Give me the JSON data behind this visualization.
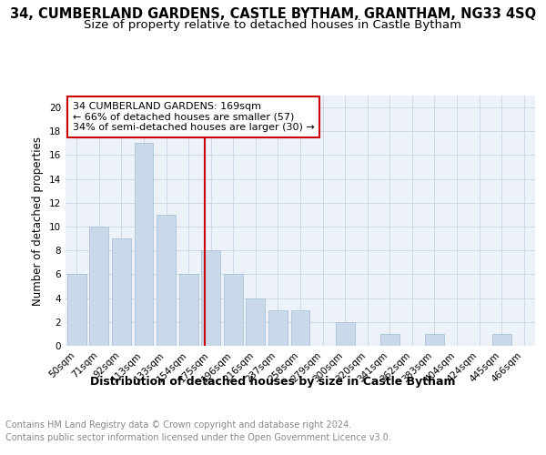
{
  "title1": "34, CUMBERLAND GARDENS, CASTLE BYTHAM, GRANTHAM, NG33 4SQ",
  "title2": "Size of property relative to detached houses in Castle Bytham",
  "xlabel": "Distribution of detached houses by size in Castle Bytham",
  "ylabel": "Number of detached properties",
  "categories": [
    "50sqm",
    "71sqm",
    "92sqm",
    "113sqm",
    "133sqm",
    "154sqm",
    "175sqm",
    "196sqm",
    "216sqm",
    "237sqm",
    "258sqm",
    "279sqm",
    "300sqm",
    "320sqm",
    "341sqm",
    "362sqm",
    "383sqm",
    "404sqm",
    "424sqm",
    "445sqm",
    "466sqm"
  ],
  "values": [
    6,
    10,
    9,
    17,
    11,
    6,
    8,
    6,
    4,
    3,
    3,
    0,
    2,
    0,
    1,
    0,
    1,
    0,
    0,
    1,
    0
  ],
  "bar_color": "#c9d9ea",
  "bar_edgecolor": "#a8c4d8",
  "vline_color": "#cc0000",
  "annotation_lines": [
    "34 CUMBERLAND GARDENS: 169sqm",
    "← 66% of detached houses are smaller (57)",
    "34% of semi-detached houses are larger (30) →"
  ],
  "ylim": [
    0,
    21
  ],
  "yticks": [
    0,
    2,
    4,
    6,
    8,
    10,
    12,
    14,
    16,
    18,
    20
  ],
  "grid_color": "#cdd8e8",
  "background_color": "#edf2f9",
  "footer_line1": "Contains HM Land Registry data © Crown copyright and database right 2024.",
  "footer_line2": "Contains public sector information licensed under the Open Government Licence v3.0.",
  "title1_fontsize": 10.5,
  "title2_fontsize": 9.5,
  "xlabel_fontsize": 9,
  "ylabel_fontsize": 8.5,
  "tick_fontsize": 7.5,
  "ann_fontsize": 8,
  "footer_fontsize": 7
}
